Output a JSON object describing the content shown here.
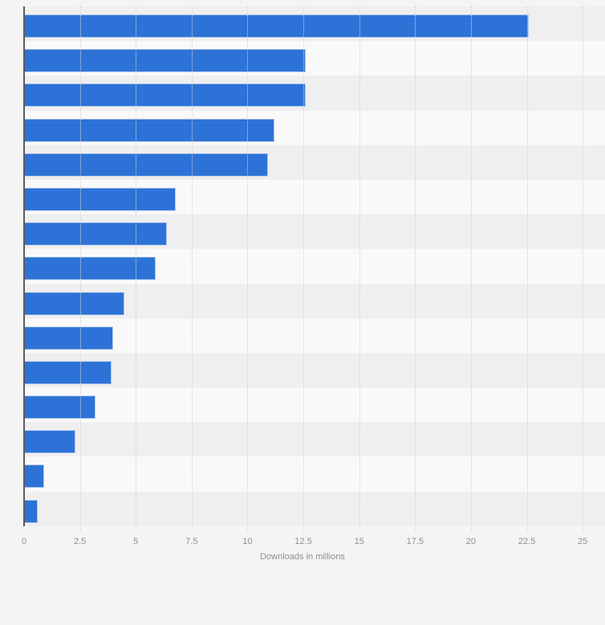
{
  "page": {
    "background": "#f4f4f4"
  },
  "chart_data": {
    "type": "bar",
    "orientation": "horizontal",
    "title": "",
    "xlabel": "Downloads in millions",
    "ylabel": "",
    "categories": [
      "",
      "",
      "",
      "",
      "",
      "",
      "",
      "",
      "",
      "",
      "",
      "",
      "",
      "",
      ""
    ],
    "values": [
      22.6,
      12.6,
      12.6,
      11.2,
      10.9,
      6.8,
      6.4,
      5.9,
      4.5,
      4.0,
      3.9,
      3.2,
      2.3,
      0.9,
      0.6
    ],
    "xlim": [
      0,
      26
    ],
    "xticks": [
      0,
      2.5,
      5,
      7.5,
      10,
      12.5,
      15,
      17.5,
      20,
      22.5,
      25
    ],
    "xtick_labels": [
      "0",
      "2.5",
      "5",
      "7.5",
      "10",
      "12.5",
      "15",
      "17.5",
      "20",
      "22.5",
      "25"
    ],
    "grid": true,
    "gridline_style": "dotted",
    "legend": false,
    "row_striping": true,
    "category_labels_visible": false,
    "bar_color": "#2d73d7",
    "bar_border_color": "#aec6ec",
    "stripe_color_odd": "#efefef",
    "stripe_color_even": "#f9f9f9",
    "axis_line_color": "#5a5a5a",
    "gridline_color": "#d2d2d2",
    "tick_label_color": "#8f8f8f",
    "axis_label_color": "#8f8f8f"
  }
}
